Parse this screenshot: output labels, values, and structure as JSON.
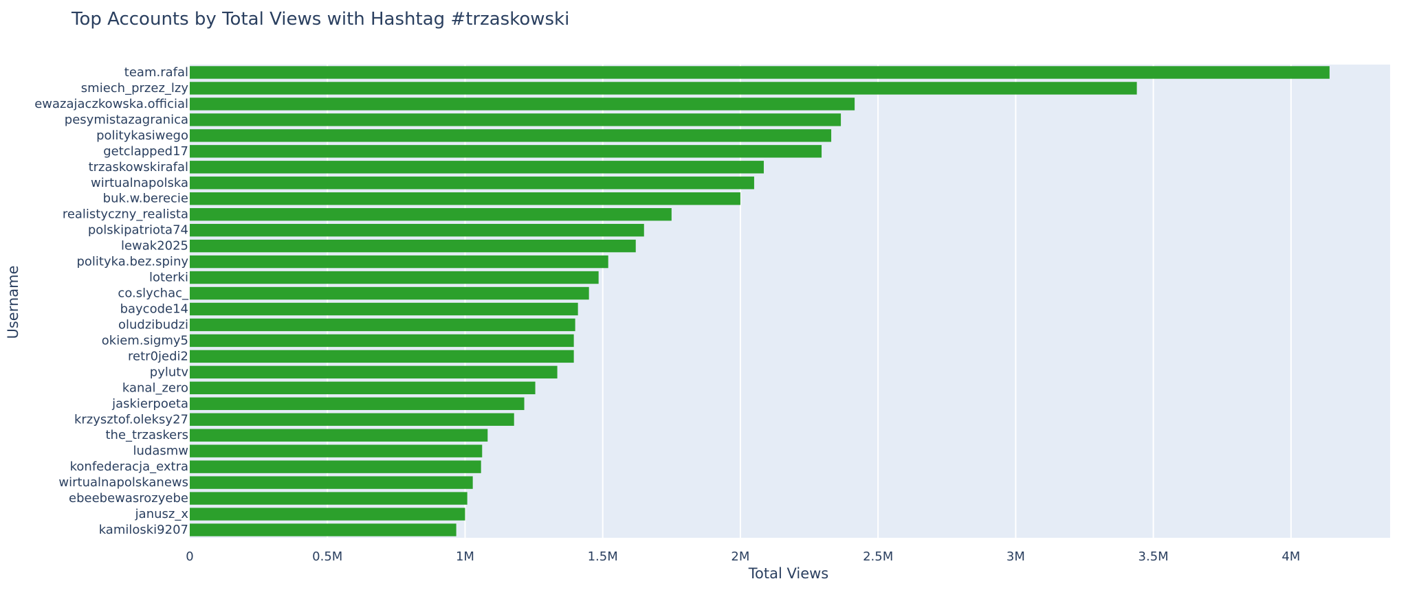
{
  "chart_data": {
    "type": "bar",
    "orientation": "horizontal",
    "title": "Top Accounts by Total Views with Hashtag #trzaskowski",
    "xlabel": "Total Views",
    "ylabel": "Username",
    "xlim": [
      0,
      4360000
    ],
    "x_ticks": [
      {
        "value": 0,
        "label": "0"
      },
      {
        "value": 500000,
        "label": "0.5M"
      },
      {
        "value": 1000000,
        "label": "1M"
      },
      {
        "value": 1500000,
        "label": "1.5M"
      },
      {
        "value": 2000000,
        "label": "2M"
      },
      {
        "value": 2500000,
        "label": "2.5M"
      },
      {
        "value": 3000000,
        "label": "3M"
      },
      {
        "value": 3500000,
        "label": "3.5M"
      },
      {
        "value": 4000000,
        "label": "4M"
      }
    ],
    "bar_color": "#2ca02c",
    "plot_background": "#e5ecf6",
    "grid": true,
    "categories": [
      "team.rafal",
      "smiech_przez_lzy",
      "ewazajaczkowska.official",
      "pesymistazagranica",
      "politykasiwego",
      "getclapped17",
      "trzaskowskirafal",
      "wirtualnapolska",
      "buk.w.berecie",
      "realistyczny_realista",
      "polskipatriota74",
      "lewak2025",
      "polityka.bez.spiny",
      "loterki",
      "co.slychac_",
      "baycode14",
      "oludzibudzi",
      "okiem.sigmy5",
      "retr0jedi2",
      "pylutv",
      "kanal_zero",
      "jaskierpoeta",
      "krzysztof.oleksy27",
      "the_trzaskers",
      "ludasmw",
      "konfederacja_extra",
      "wirtualnapolskanews",
      "ebeebewasrozyebe",
      "janusz_x",
      "kamiloski9207"
    ],
    "values": [
      4140000,
      3440000,
      2415000,
      2365000,
      2330000,
      2295000,
      2085000,
      2050000,
      2000000,
      1750000,
      1650000,
      1620000,
      1520000,
      1485000,
      1450000,
      1410000,
      1400000,
      1395000,
      1395000,
      1335000,
      1255000,
      1215000,
      1178000,
      1082000,
      1062000,
      1058000,
      1028000,
      1008000,
      1000000,
      968000
    ]
  }
}
